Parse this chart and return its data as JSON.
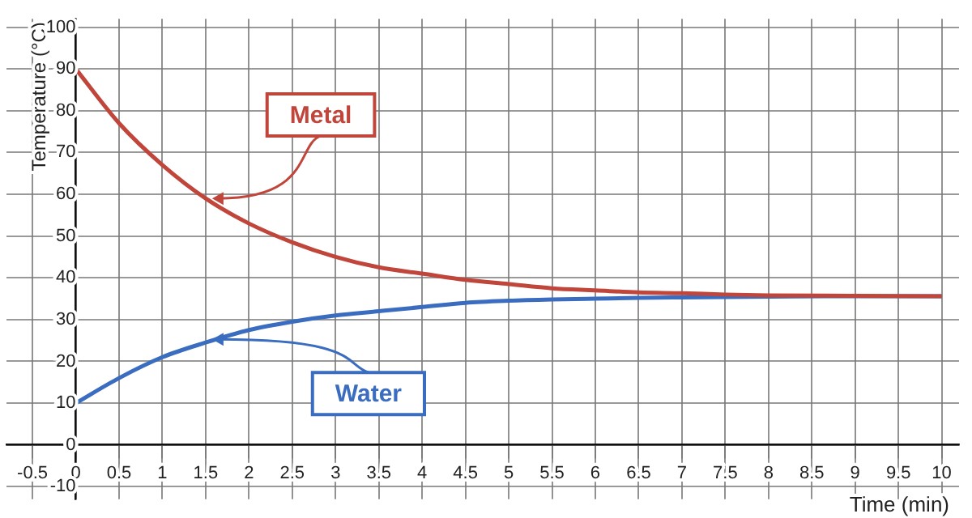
{
  "chart_data": {
    "type": "line",
    "xlabel": "Time (min)",
    "ylabel": "Temperature (°C)",
    "grid": true,
    "line_style": "solid",
    "marker": "none",
    "x": [
      0,
      0.5,
      1,
      1.5,
      2,
      2.5,
      3,
      3.5,
      4,
      4.5,
      5,
      5.5,
      6,
      6.5,
      7,
      7.5,
      8,
      9,
      10
    ],
    "series": [
      {
        "name": "Metal",
        "color": "#c0463c",
        "values": [
          90,
          77,
          67,
          59,
          53,
          48.5,
          45,
          42.5,
          41,
          39.5,
          38.5,
          37.5,
          37,
          36.5,
          36.3,
          36,
          35.8,
          35.7,
          35.6
        ]
      },
      {
        "name": "Water",
        "color": "#3a6cbf",
        "values": [
          10,
          16,
          21,
          24.5,
          27.5,
          29.5,
          31,
          32,
          33,
          34,
          34.5,
          34.8,
          35,
          35.2,
          35.3,
          35.4,
          35.5,
          35.6,
          35.6
        ]
      }
    ],
    "xlim": [
      -0.8,
      10.2
    ],
    "ylim": [
      -13,
      102
    ],
    "xticks": [
      -0.5,
      0,
      0.5,
      1,
      1.5,
      2,
      2.5,
      3,
      3.5,
      4,
      4.5,
      5,
      5.5,
      6,
      6.5,
      7,
      7.5,
      8,
      8.5,
      9,
      9.5,
      10
    ],
    "yticks": [
      -10,
      0,
      10,
      20,
      30,
      40,
      50,
      60,
      70,
      80,
      90,
      100
    ]
  }
}
